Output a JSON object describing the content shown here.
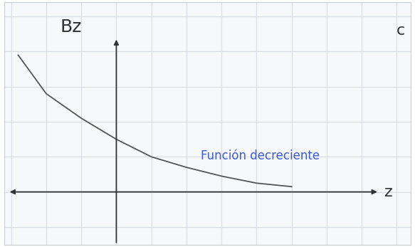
{
  "chart_data": {
    "type": "line",
    "x_label": "z",
    "y_label": "Bz",
    "annotations": [
      "Función decreciente",
      "c"
    ],
    "x": [
      -2.8,
      -2,
      -1,
      0,
      1,
      2,
      3,
      4,
      5
    ],
    "values": [
      3.9,
      2.8,
      2.1,
      1.5,
      1.0,
      0.7,
      0.45,
      0.25,
      0.15
    ],
    "color": "#555555",
    "xlim": [
      -3.2,
      8.4
    ],
    "ylim": [
      -1.5,
      5.4
    ],
    "xticks": [
      -3,
      -2,
      -1,
      0,
      1,
      2,
      3,
      4,
      5,
      6,
      7,
      8
    ],
    "yticks": [
      -1,
      0,
      1,
      2,
      3,
      4,
      5
    ],
    "grid": true,
    "tick_labels": false
  }
}
